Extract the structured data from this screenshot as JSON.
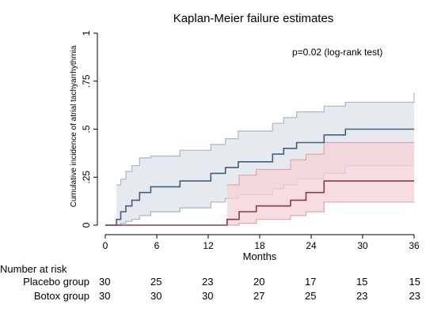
{
  "chart_data": {
    "type": "line",
    "title": "Kaplan-Meier failure estimates",
    "xlabel": "Months",
    "ylabel": "Cumulative incidence of atrial tachyarrhythmia",
    "xlim": [
      0,
      36
    ],
    "ylim": [
      0,
      1
    ],
    "x_ticks": [
      0,
      6,
      12,
      18,
      24,
      30,
      36
    ],
    "x_tick_labels": [
      "0",
      "6",
      "12",
      "18",
      "24",
      "30",
      "36"
    ],
    "y_ticks": [
      0,
      0.25,
      0.5,
      0.75,
      1
    ],
    "y_tick_labels": [
      "0",
      ".25",
      ".5",
      ".75",
      "1"
    ],
    "grid": false,
    "annotation": "p=0.02 (log-rank test)",
    "series": [
      {
        "name": "Placebo group",
        "color": "#3f5f7f",
        "band_color": "#dde3ea",
        "step_x": [
          0,
          1.3,
          1.8,
          2.4,
          3.1,
          4,
          5.3,
          7.3,
          8.7,
          9.9,
          12.3,
          14,
          15.5,
          16.7,
          19.5,
          20.8,
          22.3,
          25.5,
          28,
          36
        ],
        "estimate": [
          0,
          0.03,
          0.07,
          0.1,
          0.13,
          0.17,
          0.2,
          0.2,
          0.23,
          0.23,
          0.27,
          0.3,
          0.33,
          0.33,
          0.37,
          0.4,
          0.43,
          0.47,
          0.5,
          0.5
        ],
        "lower": [
          0,
          0.0,
          0.01,
          0.02,
          0.03,
          0.05,
          0.07,
          0.07,
          0.09,
          0.09,
          0.12,
          0.14,
          0.16,
          0.16,
          0.19,
          0.21,
          0.24,
          0.27,
          0.31,
          0.31
        ],
        "upper": [
          0,
          0.21,
          0.24,
          0.28,
          0.31,
          0.35,
          0.36,
          0.36,
          0.39,
          0.39,
          0.42,
          0.45,
          0.49,
          0.49,
          0.53,
          0.56,
          0.59,
          0.62,
          0.64,
          0.69
        ]
      },
      {
        "name": "Botox group",
        "color": "#8b3a4a",
        "band_color": "#f3d2d7",
        "step_x": [
          0,
          14.2,
          15.6,
          17.6,
          21.6,
          23.4,
          25.5,
          36
        ],
        "estimate": [
          0,
          0.03,
          0.07,
          0.1,
          0.13,
          0.17,
          0.23,
          0.23
        ],
        "lower": [
          0,
          0.0,
          0.01,
          0.03,
          0.05,
          0.07,
          0.12,
          0.12
        ],
        "upper": [
          0,
          0.21,
          0.26,
          0.29,
          0.34,
          0.37,
          0.43,
          0.43
        ]
      }
    ],
    "risk_table": {
      "header": "Number at risk",
      "times": [
        0,
        6,
        12,
        18,
        24,
        30,
        36
      ],
      "rows": [
        {
          "label": "Placebo group",
          "counts": [
            "30",
            "25",
            "23",
            "20",
            "17",
            "15",
            "15"
          ]
        },
        {
          "label": "Botox group",
          "counts": [
            "30",
            "30",
            "30",
            "27",
            "25",
            "23",
            "23"
          ]
        }
      ]
    }
  }
}
